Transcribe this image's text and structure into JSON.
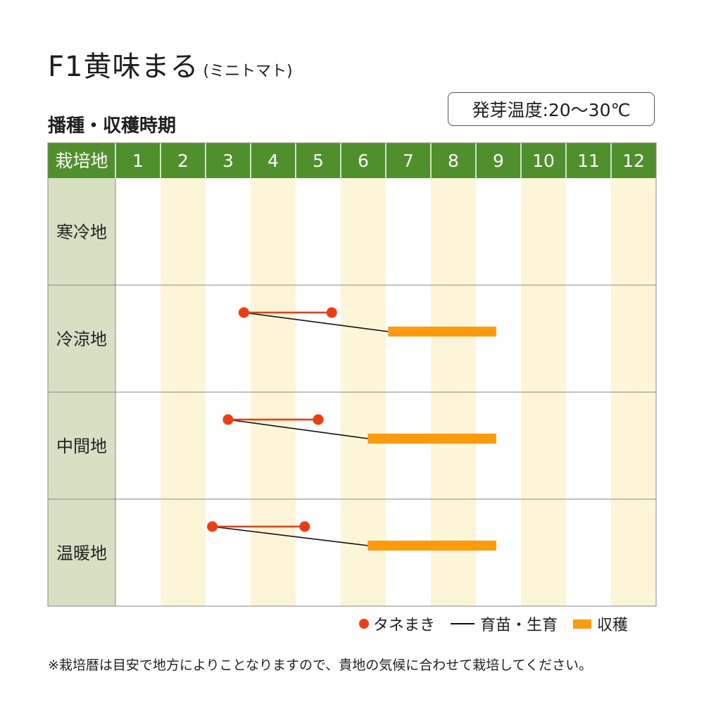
{
  "header": {
    "title": "F1黄味まる",
    "title_sub": "(ミニトマト)",
    "subtitle": "播種・収穫時期",
    "temperature": "発芽温度:20〜30℃"
  },
  "chart_data": {
    "type": "table",
    "corner_label": "栽培地",
    "months": [
      "1",
      "2",
      "3",
      "4",
      "5",
      "6",
      "7",
      "8",
      "9",
      "10",
      "11",
      "12"
    ],
    "rows": [
      {
        "region": "寒冷地",
        "sowing": null,
        "harvest": null
      },
      {
        "region": "冷涼地",
        "sowing": [
          3.85,
          5.8
        ],
        "harvest": [
          7.05,
          9.45
        ]
      },
      {
        "region": "中間地",
        "sowing": [
          3.5,
          5.5
        ],
        "harvest": [
          6.6,
          9.45
        ]
      },
      {
        "region": "温暖地",
        "sowing": [
          3.15,
          5.2
        ],
        "harvest": [
          6.6,
          9.45
        ]
      }
    ],
    "legend": [
      {
        "key": "sowing",
        "label": "タネまき"
      },
      {
        "key": "nursery",
        "label": "育苗・生育"
      },
      {
        "key": "harvest",
        "label": "収穫"
      }
    ],
    "colors": {
      "header_bg": "#4f8f2c",
      "region_bg": "#d7e0c3",
      "stripe": "#fdf5d8",
      "sowing": "#f23c10",
      "nursery": "#111111",
      "harvest": "#ff9a0a",
      "grid": "#8a8a8a"
    }
  },
  "note": "※栽培暦は目安で地方によりことなりますので、貴地の気候に合わせて栽培してください。"
}
